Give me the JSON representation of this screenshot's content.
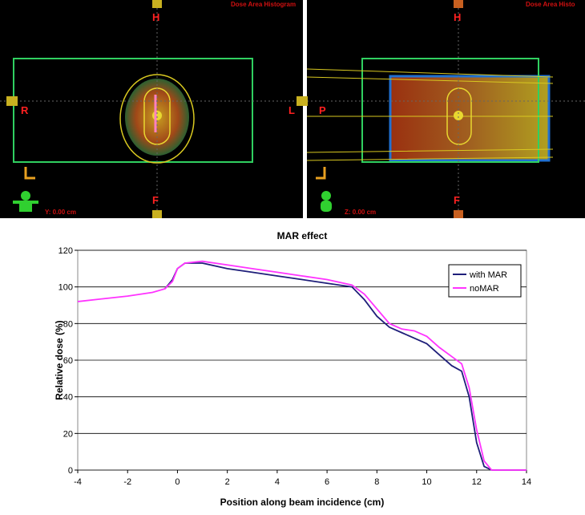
{
  "panels": [
    {
      "top": "H",
      "bottom": "F",
      "left": "R",
      "right": "L",
      "header": "Dose Area Histogram",
      "coord": "Y: 0.00 cm"
    },
    {
      "top": "H",
      "bottom": "F",
      "left": "P",
      "header": "Dose Area Histo",
      "coord": "Z: 0.00 cm"
    }
  ],
  "chart_data": {
    "type": "line",
    "title": "MAR effect",
    "x_label": "Position along beam incidence (cm)",
    "y_label": "Relative dose (%)",
    "x": [
      -4,
      -3,
      -2,
      -1,
      -0.5,
      -0.2,
      0,
      0.3,
      1,
      2,
      3,
      4,
      5,
      6,
      7,
      7.5,
      8,
      8.5,
      9,
      9.5,
      10,
      10.5,
      11,
      11.4,
      11.7,
      12,
      12.3,
      12.6,
      14
    ],
    "series": [
      {
        "name": "with MAR",
        "color": "#1f1f7a",
        "values": [
          null,
          null,
          null,
          null,
          99,
          104,
          110,
          113,
          113,
          110,
          108,
          106,
          104,
          102,
          100,
          93,
          84,
          78,
          75,
          72,
          69,
          63,
          57,
          54,
          40,
          15,
          2,
          0,
          0
        ]
      },
      {
        "name": "noMAR",
        "color": "#ff33ff",
        "values": [
          92,
          93.5,
          95,
          97,
          99,
          103,
          110,
          113,
          114,
          112,
          110,
          108,
          106,
          104,
          101,
          96,
          88,
          80,
          77,
          76,
          73,
          67,
          62,
          58,
          45,
          22,
          5,
          0,
          0
        ]
      }
    ],
    "xlim": [
      -4,
      14
    ],
    "xticks": [
      -4,
      -2,
      0,
      2,
      4,
      6,
      8,
      10,
      12,
      14
    ],
    "ylim": [
      0,
      120
    ],
    "yticks": [
      0,
      20,
      40,
      60,
      80,
      100,
      120
    ],
    "grid": true,
    "legend": "top-right"
  }
}
